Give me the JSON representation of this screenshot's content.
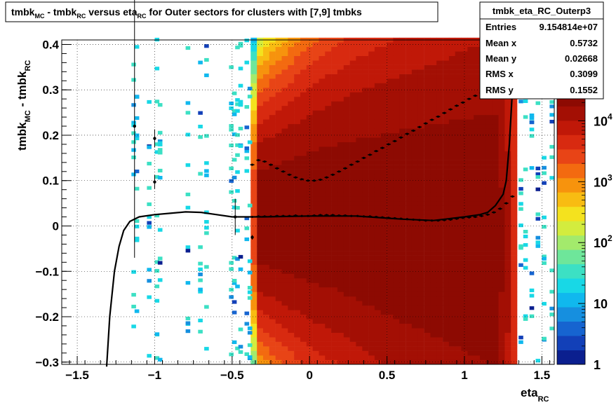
{
  "chart_data": {
    "type": "heatmap",
    "title": {
      "parts": [
        "tmbk",
        "MC",
        " - tmbk",
        "RC",
        " versus eta",
        "RC",
        " for Outer sectors for clusters with [7,9] tmbks"
      ]
    },
    "xlabel": {
      "main": "eta",
      "sub": "RC"
    },
    "ylabel": {
      "p1": "tmbk",
      "s1": "MC",
      "p2": " - tmbk",
      "s2": "RC"
    },
    "xlim": [
      -1.6,
      1.58
    ],
    "ylim": [
      -0.305,
      0.41
    ],
    "x_ticks": [
      {
        "v": -1.5,
        "label": "−1.5"
      },
      {
        "v": -1,
        "label": "−1"
      },
      {
        "v": -0.5,
        "label": "−0.5"
      },
      {
        "v": 0,
        "label": "0"
      },
      {
        "v": 0.5,
        "label": "0.5"
      },
      {
        "v": 1,
        "label": "1"
      },
      {
        "v": 1.5,
        "label": "1.5"
      }
    ],
    "y_ticks": [
      {
        "v": 0.4,
        "label": "0.4"
      },
      {
        "v": 0.3,
        "label": "0.3"
      },
      {
        "v": 0.2,
        "label": "0.2"
      },
      {
        "v": 0.1,
        "label": "0.1"
      },
      {
        "v": 0,
        "label": "0"
      },
      {
        "v": -0.1,
        "label": "−0.1"
      },
      {
        "v": -0.2,
        "label": "−0.2"
      },
      {
        "v": -0.3,
        "label": "−0.3"
      }
    ],
    "grid": true,
    "z_scale": "log",
    "z_range": [
      1,
      30000
    ],
    "z_ticks": [
      {
        "v": 1,
        "base": "1",
        "exp": ""
      },
      {
        "v": 10,
        "base": "10",
        "exp": ""
      },
      {
        "v": 100,
        "base": "10",
        "exp": "2"
      },
      {
        "v": 1000,
        "base": "10",
        "exp": "3"
      },
      {
        "v": 10000,
        "base": "10",
        "exp": "4"
      }
    ],
    "palette": [
      "#0b1f8f",
      "#1240b8",
      "#1664d0",
      "#168fdf",
      "#10b8ee",
      "#18d8e6",
      "#3ce0c4",
      "#6ee69a",
      "#a3ea6c",
      "#d3ec3e",
      "#f4e21e",
      "#f8bc12",
      "#f7930d",
      "#f36a10",
      "#e84416",
      "#d82a10",
      "#c01808",
      "#a30f04",
      "#8d0a02"
    ],
    "stats_box": {
      "title": "tmbk_eta_RC_Outerp3",
      "rows": [
        {
          "label": "Entries",
          "value": "9.154814e+07"
        },
        {
          "label": "Mean x",
          "value": "0.5732"
        },
        {
          "label": "Mean y",
          "value": "0.02668"
        },
        {
          "label": "RMS x",
          "value": "0.3099"
        },
        {
          "label": "RMS y",
          "value": "0.1552"
        }
      ]
    },
    "profile_points": [
      {
        "x": -1.13,
        "y": 0.22,
        "ey": 0.29
      },
      {
        "x": -1.0,
        "y": 0.193,
        "ey": 0.02
      },
      {
        "x": -1.0,
        "y": 0.097,
        "ey": 0.015
      },
      {
        "x": -0.48,
        "y": 0.02,
        "ey": 0.04
      },
      {
        "x": -0.37,
        "y": -0.025,
        "ey": 0.005
      }
    ],
    "mean_profile_x": [
      -0.37,
      -0.33,
      -0.29,
      -0.25,
      -0.21,
      -0.17,
      -0.13,
      -0.09,
      -0.05,
      -0.01,
      0.03,
      0.07,
      0.11,
      0.15,
      0.19,
      0.23,
      0.27,
      0.31,
      0.35,
      0.39,
      0.43,
      0.47,
      0.51,
      0.55,
      0.59,
      0.63,
      0.67,
      0.71,
      0.75,
      0.79,
      0.83,
      0.87,
      0.91,
      0.95,
      0.99,
      1.03,
      1.07,
      1.11,
      1.15,
      1.19,
      1.23,
      1.27,
      1.31
    ],
    "mean_profile_y": [
      0.02,
      0.021,
      0.021,
      0.021,
      0.022,
      0.022,
      0.022,
      0.023,
      0.022,
      0.022,
      0.023,
      0.024,
      0.024,
      0.024,
      0.023,
      0.023,
      0.022,
      0.022,
      0.021,
      0.021,
      0.02,
      0.019,
      0.018,
      0.017,
      0.016,
      0.015,
      0.014,
      0.013,
      0.012,
      0.012,
      0.012,
      0.013,
      0.014,
      0.016,
      0.018,
      0.019,
      0.02,
      0.022,
      0.025,
      0.03,
      0.038,
      0.05,
      0.065
    ],
    "rms_profile_x": [
      -0.37,
      -0.33,
      -0.29,
      -0.25,
      -0.21,
      -0.17,
      -0.13,
      -0.09,
      -0.05,
      -0.01,
      0.03,
      0.07,
      0.11,
      0.15,
      0.19,
      0.23,
      0.27,
      0.31,
      0.35,
      0.39,
      0.43,
      0.47,
      0.51,
      0.55,
      0.59,
      0.63,
      0.67,
      0.71,
      0.75,
      0.79,
      0.83,
      0.87,
      0.91,
      0.95,
      0.99,
      1.03,
      1.07,
      1.11,
      1.15,
      1.19,
      1.23,
      1.27,
      1.31
    ],
    "rms_profile_y": [
      0.135,
      0.145,
      0.142,
      0.135,
      0.127,
      0.12,
      0.113,
      0.107,
      0.103,
      0.1,
      0.1,
      0.102,
      0.107,
      0.113,
      0.12,
      0.127,
      0.135,
      0.142,
      0.15,
      0.157,
      0.165,
      0.172,
      0.18,
      0.187,
      0.195,
      0.203,
      0.21,
      0.218,
      0.226,
      0.234,
      0.241,
      0.249,
      0.257,
      0.265,
      0.272,
      0.28,
      0.287,
      0.293,
      0.3,
      0.308,
      0.316,
      0.325,
      0.335
    ],
    "fit_x": [
      -1.31,
      -1.29,
      -1.26,
      -1.23,
      -1.2,
      -1.16,
      -1.1,
      -1.0,
      -0.9,
      -0.8,
      -0.7,
      -0.6,
      -0.5,
      -0.3,
      0.0,
      0.3,
      0.6,
      0.8,
      1.0,
      1.1,
      1.15,
      1.2,
      1.25,
      1.27,
      1.29,
      1.31,
      1.33
    ],
    "fit_y": [
      -0.31,
      -0.2,
      -0.1,
      -0.045,
      -0.01,
      0.01,
      0.02,
      0.025,
      0.028,
      0.031,
      0.03,
      0.025,
      0.02,
      0.02,
      0.022,
      0.022,
      0.015,
      0.012,
      0.02,
      0.025,
      0.03,
      0.045,
      0.07,
      0.1,
      0.18,
      0.3,
      0.42
    ]
  }
}
